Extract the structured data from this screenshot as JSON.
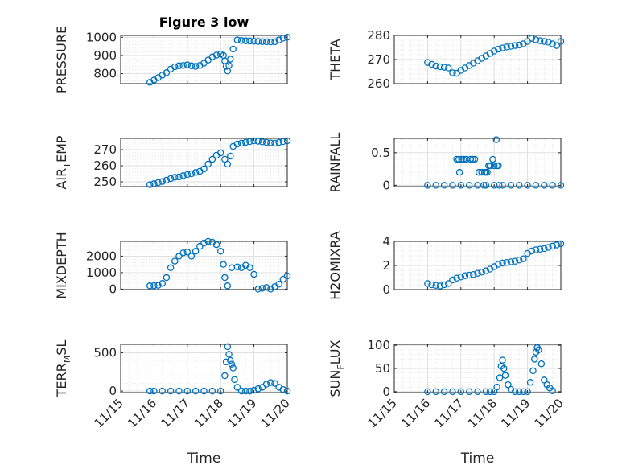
{
  "figure_title": "Figure 3 low",
  "colors": {
    "marker": "#0072bd",
    "axis": "#262626",
    "grid": "#dcdcdc",
    "background": "#ffffff"
  },
  "chart_data": [
    {
      "id": "pressure",
      "type": "scatter",
      "title": "Figure 3 low",
      "ylabel": "PRESSURE",
      "xlabel": "",
      "xlim": [
        "11/15",
        "11/20"
      ],
      "xticks": [],
      "ylim": [
        745,
        1010
      ],
      "yticks": [
        800,
        900,
        1000
      ],
      "grid": true,
      "x": [
        "11/15 21:00",
        "11/16 00:00",
        "11/16 03:00",
        "11/16 06:00",
        "11/16 09:00",
        "11/16 12:00",
        "11/16 15:00",
        "11/16 18:00",
        "11/16 21:00",
        "11/17 00:00",
        "11/17 03:00",
        "11/17 06:00",
        "11/17 09:00",
        "11/17 12:00",
        "11/17 15:00",
        "11/17 18:00",
        "11/17 21:00",
        "11/18 00:00",
        "11/18 02:00",
        "11/18 03:00",
        "11/18 04:00",
        "11/18 05:00",
        "11/18 06:00",
        "11/18 07:00",
        "11/18 09:00",
        "11/18 12:00",
        "11/18 15:00",
        "11/18 18:00",
        "11/18 21:00",
        "11/19 00:00",
        "11/19 03:00",
        "11/19 06:00",
        "11/19 09:00",
        "11/19 12:00",
        "11/19 15:00",
        "11/19 18:00",
        "11/19 21:00",
        "11/20 00:00"
      ],
      "y": [
        752,
        765,
        778,
        792,
        805,
        825,
        838,
        843,
        845,
        848,
        843,
        840,
        845,
        858,
        875,
        892,
        902,
        908,
        900,
        870,
        840,
        815,
        845,
        880,
        935,
        985,
        982,
        980,
        979,
        978,
        977,
        976,
        975,
        974,
        975,
        985,
        995,
        1000
      ]
    },
    {
      "id": "theta",
      "type": "scatter",
      "ylabel": "THETA",
      "xlabel": "",
      "xlim": [
        "11/15",
        "11/20"
      ],
      "xticks": [],
      "ylim": [
        260,
        280
      ],
      "yticks": [
        260,
        270,
        280
      ],
      "grid": true,
      "x": [
        "11/16 00:00",
        "11/16 03:00",
        "11/16 06:00",
        "11/16 09:00",
        "11/16 12:00",
        "11/16 15:00",
        "11/16 18:00",
        "11/16 21:00",
        "11/17 00:00",
        "11/17 03:00",
        "11/17 06:00",
        "11/17 09:00",
        "11/17 12:00",
        "11/17 15:00",
        "11/17 18:00",
        "11/17 21:00",
        "11/18 00:00",
        "11/18 03:00",
        "11/18 06:00",
        "11/18 09:00",
        "11/18 12:00",
        "11/18 15:00",
        "11/18 18:00",
        "11/18 21:00",
        "11/19 00:00",
        "11/19 03:00",
        "11/19 06:00",
        "11/19 09:00",
        "11/19 12:00",
        "11/19 15:00",
        "11/19 18:00",
        "11/19 21:00",
        "11/20 00:00"
      ],
      "y": [
        268.8,
        268.0,
        267.3,
        267.0,
        266.8,
        266.5,
        264.5,
        264.3,
        265.5,
        266.5,
        267.5,
        268.5,
        269.5,
        270.5,
        271.5,
        272.5,
        273.5,
        274.3,
        274.8,
        275.2,
        275.5,
        275.8,
        276.0,
        276.5,
        277.5,
        278.8,
        278.2,
        277.8,
        277.5,
        277.2,
        276.5,
        275.8,
        277.5
      ]
    },
    {
      "id": "air_temp",
      "type": "scatter",
      "ylabel": "AIR_TEMP",
      "xlabel": "",
      "xlim": [
        "11/15",
        "11/20"
      ],
      "xticks": [],
      "ylim": [
        247,
        277
      ],
      "yticks": [
        250,
        260,
        270
      ],
      "grid": true,
      "x": [
        "11/15 21:00",
        "11/16 00:00",
        "11/16 03:00",
        "11/16 06:00",
        "11/16 09:00",
        "11/16 12:00",
        "11/16 15:00",
        "11/16 18:00",
        "11/16 21:00",
        "11/17 00:00",
        "11/17 03:00",
        "11/17 06:00",
        "11/17 09:00",
        "11/17 12:00",
        "11/17 15:00",
        "11/17 18:00",
        "11/17 21:00",
        "11/18 00:00",
        "11/18 03:00",
        "11/18 05:00",
        "11/18 07:00",
        "11/18 09:00",
        "11/18 12:00",
        "11/18 15:00",
        "11/18 18:00",
        "11/18 21:00",
        "11/19 00:00",
        "11/19 03:00",
        "11/19 06:00",
        "11/19 09:00",
        "11/19 12:00",
        "11/19 15:00",
        "11/19 18:00",
        "11/19 21:00",
        "11/20 00:00"
      ],
      "y": [
        248.2,
        248.8,
        249.5,
        250.2,
        251.0,
        252.0,
        252.8,
        253.0,
        253.8,
        254.5,
        255.0,
        255.8,
        256.5,
        258.0,
        261.0,
        264.0,
        266.5,
        268.0,
        264.0,
        261.0,
        266.0,
        272.0,
        273.5,
        274.0,
        274.5,
        275.0,
        275.5,
        275.2,
        274.8,
        274.5,
        274.2,
        274.0,
        274.5,
        275.0,
        275.5
      ]
    },
    {
      "id": "rainfall",
      "type": "scatter",
      "ylabel": "RAINFALL",
      "xlabel": "",
      "xlim": [
        "11/15",
        "11/20"
      ],
      "xticks": [],
      "ylim": [
        -0.02,
        0.72
      ],
      "yticks": [
        0,
        0.5
      ],
      "grid": true,
      "x": [
        "11/16 00:00",
        "11/16 06:00",
        "11/16 12:00",
        "11/16 18:00",
        "11/17 00:00",
        "11/17 06:00",
        "11/17 12:00",
        "11/17 18:00",
        "11/18 00:00",
        "11/18 06:00",
        "11/18 12:00",
        "11/18 18:00",
        "11/19 00:00",
        "11/19 06:00",
        "11/19 12:00",
        "11/19 18:00",
        "11/20 00:00",
        "11/16 21:00",
        "11/16 22:30",
        "11/17 00:30",
        "11/17 02:00",
        "11/17 04:00",
        "11/17 07:00",
        "11/17 08:30",
        "11/17 10:00",
        "11/17 13:00",
        "11/17 15:00",
        "11/17 17:00",
        "11/17 18:00",
        "11/17 19:00",
        "11/17 20:00",
        "11/17 21:00",
        "11/18 00:00",
        "11/18 01:30",
        "11/18 03:00",
        "11/16 23:00",
        "11/17 16:30",
        "11/17 21:30",
        "11/18 03:30",
        "11/17 23:00",
        "11/18 02:00"
      ],
      "y": [
        0,
        0,
        0,
        0,
        0,
        0,
        0,
        0,
        0,
        0,
        0,
        0,
        0,
        0,
        0,
        0,
        0,
        0.4,
        0.4,
        0.4,
        0.4,
        0.4,
        0.4,
        0.4,
        0.4,
        0.2,
        0.2,
        0.2,
        0.2,
        0.2,
        0.3,
        0.3,
        0.3,
        0.7,
        0.3,
        0.2,
        0.0,
        0.3,
        0.0,
        0.4,
        0.3
      ]
    },
    {
      "id": "mixdepth",
      "type": "scatter",
      "ylabel": "MIXDEPTH",
      "xlabel": "",
      "xlim": [
        "11/15",
        "11/20"
      ],
      "xticks": [],
      "ylim": [
        -30,
        2900
      ],
      "yticks": [
        0,
        1000,
        2000
      ],
      "grid": true,
      "x": [
        "11/15 21:00",
        "11/16 00:00",
        "11/16 03:00",
        "11/16 06:00",
        "11/16 09:00",
        "11/16 12:00",
        "11/16 15:00",
        "11/16 18:00",
        "11/16 21:00",
        "11/17 00:00",
        "11/17 03:00",
        "11/17 06:00",
        "11/17 09:00",
        "11/17 12:00",
        "11/17 15:00",
        "11/17 18:00",
        "11/17 21:00",
        "11/18 00:00",
        "11/18 02:00",
        "11/18 03:00",
        "11/18 05:00",
        "11/18 08:00",
        "11/18 12:00",
        "11/18 15:00",
        "11/18 18:00",
        "11/18 21:00",
        "11/19 00:00",
        "11/19 03:00",
        "11/19 06:00",
        "11/19 09:00",
        "11/19 12:00",
        "11/19 15:00",
        "11/19 18:00",
        "11/19 21:00",
        "11/20 00:00"
      ],
      "y": [
        200,
        210,
        230,
        350,
        700,
        1300,
        1700,
        2000,
        2200,
        2250,
        2000,
        2300,
        2600,
        2800,
        2900,
        2850,
        2700,
        2300,
        1500,
        700,
        200,
        1300,
        1350,
        1300,
        1450,
        1300,
        900,
        0,
        50,
        100,
        0,
        150,
        300,
        600,
        800
      ]
    },
    {
      "id": "h2omixra",
      "type": "scatter",
      "ylabel": "H2OMIXRA",
      "xlabel": "",
      "xlim": [
        "11/15",
        "11/20"
      ],
      "xticks": [],
      "ylim": [
        0,
        4
      ],
      "yticks": [
        0,
        2,
        4
      ],
      "grid": true,
      "x": [
        "11/16 00:00",
        "11/16 03:00",
        "11/16 06:00",
        "11/16 09:00",
        "11/16 12:00",
        "11/16 15:00",
        "11/16 18:00",
        "11/16 21:00",
        "11/17 00:00",
        "11/17 03:00",
        "11/17 06:00",
        "11/17 09:00",
        "11/17 12:00",
        "11/17 15:00",
        "11/17 18:00",
        "11/17 21:00",
        "11/18 00:00",
        "11/18 03:00",
        "11/18 06:00",
        "11/18 09:00",
        "11/18 12:00",
        "11/18 15:00",
        "11/18 18:00",
        "11/18 21:00",
        "11/19 00:00",
        "11/19 03:00",
        "11/19 06:00",
        "11/19 09:00",
        "11/19 12:00",
        "11/19 15:00",
        "11/19 18:00",
        "11/19 21:00",
        "11/20 00:00"
      ],
      "y": [
        0.5,
        0.4,
        0.35,
        0.3,
        0.4,
        0.5,
        0.8,
        0.95,
        1.05,
        1.15,
        1.2,
        1.25,
        1.35,
        1.45,
        1.55,
        1.7,
        1.9,
        2.1,
        2.2,
        2.25,
        2.3,
        2.35,
        2.45,
        2.55,
        3.0,
        3.2,
        3.3,
        3.35,
        3.4,
        3.5,
        3.6,
        3.7,
        3.8
      ]
    },
    {
      "id": "terr_msl",
      "type": "scatter",
      "ylabel": "TERR_MSL",
      "xlabel": "Time",
      "xlim": [
        "11/15",
        "11/20"
      ],
      "xticks": [
        "11/15",
        "11/16",
        "11/17",
        "11/18",
        "11/19",
        "11/20"
      ],
      "ylim": [
        -20,
        610
      ],
      "yticks": [
        0,
        500
      ],
      "grid": true,
      "x": [
        "11/15 21:00",
        "11/16 00:00",
        "11/16 06:00",
        "11/16 12:00",
        "11/16 18:00",
        "11/17 00:00",
        "11/17 06:00",
        "11/17 12:00",
        "11/17 18:00",
        "11/18 00:00",
        "11/18 03:00",
        "11/18 04:00",
        "11/18 05:00",
        "11/18 06:00",
        "11/18 07:00",
        "11/18 08:00",
        "11/18 09:00",
        "11/18 10:00",
        "11/18 12:00",
        "11/18 15:00",
        "11/18 18:00",
        "11/18 21:00",
        "11/19 00:00",
        "11/19 03:00",
        "11/19 06:00",
        "11/19 09:00",
        "11/19 12:00",
        "11/19 15:00",
        "11/19 18:00",
        "11/19 21:00",
        "11/20 00:00"
      ],
      "y": [
        0,
        0,
        0,
        0,
        0,
        0,
        0,
        0,
        0,
        0,
        200,
        380,
        580,
        480,
        400,
        350,
        300,
        150,
        50,
        0,
        0,
        0,
        10,
        30,
        50,
        90,
        110,
        100,
        50,
        20,
        0
      ]
    },
    {
      "id": "sun_flux",
      "type": "scatter",
      "ylabel": "SUN_FLUX",
      "xlabel": "Time",
      "xlim": [
        "11/15",
        "11/20"
      ],
      "xticks": [
        "11/15",
        "11/16",
        "11/17",
        "11/18",
        "11/19",
        "11/20"
      ],
      "ylim": [
        -2,
        102
      ],
      "yticks": [
        0,
        50,
        100
      ],
      "grid": true,
      "x": [
        "11/16 00:00",
        "11/16 06:00",
        "11/16 12:00",
        "11/16 18:00",
        "11/17 00:00",
        "11/17 06:00",
        "11/17 12:00",
        "11/17 18:00",
        "11/17 21:00",
        "11/18 00:00",
        "11/18 02:00",
        "11/18 04:00",
        "11/18 05:00",
        "11/18 06:00",
        "11/18 07:00",
        "11/18 08:00",
        "11/18 10:00",
        "11/18 12:00",
        "11/18 15:00",
        "11/18 18:00",
        "11/18 21:00",
        "11/19 00:00",
        "11/19 02:00",
        "11/19 04:00",
        "11/19 05:00",
        "11/19 06:00",
        "11/19 07:00",
        "11/19 08:00",
        "11/19 10:00",
        "11/19 12:00",
        "11/19 14:00",
        "11/19 16:00",
        "11/19 18:00"
      ],
      "y": [
        0,
        0,
        0,
        0,
        0,
        0,
        0,
        0,
        0,
        0,
        10,
        30,
        55,
        68,
        50,
        35,
        15,
        5,
        0,
        0,
        0,
        0,
        20,
        45,
        70,
        85,
        95,
        90,
        60,
        25,
        15,
        8,
        2
      ]
    }
  ]
}
